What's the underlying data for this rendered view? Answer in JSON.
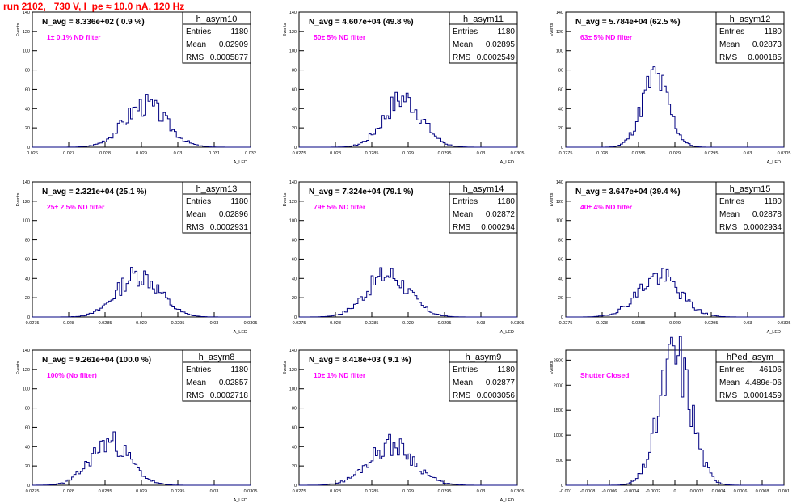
{
  "header": {
    "run_title": "run 2102,   730 V, I_pe ≈ 10.0 nA, 120 Hz"
  },
  "stats_labels": {
    "entries": "Entries",
    "mean": "Mean",
    "rms": "RMS"
  },
  "colors": {
    "title": "#ff0000",
    "filter_text": "#ff00ff",
    "histogram": "#000080",
    "frame": "#000000"
  },
  "chart_data": [
    {
      "type": "bar",
      "name": "h_asym10",
      "navg": "N_avg = 8.336e+02 ( 0.9 %)",
      "filter": "1± 0.1% ND filter",
      "entries": "1180",
      "mean": "0.02909",
      "rms": "0.0005877",
      "ylabel": "Events",
      "xlabel": "A_LED",
      "xlim": [
        0.026,
        0.032
      ],
      "ylim": [
        0,
        140
      ],
      "xticks": [
        "0.026",
        "0.027",
        "0.028",
        "0.029",
        "0.03",
        "0.031",
        "0.032"
      ],
      "yticks": [
        "0",
        "20",
        "40",
        "60",
        "80",
        "100",
        "120",
        "140"
      ],
      "mu": 0.0291,
      "sigma": 0.00058,
      "peak": 44,
      "seed": 3
    },
    {
      "type": "bar",
      "name": "h_asym11",
      "navg": "N_avg = 4.607e+04 (49.8 %)",
      "filter": "50± 5% ND filter",
      "entries": "1180",
      "mean": "0.02895",
      "rms": "0.0002549",
      "ylabel": "Events",
      "xlabel": "A_LED",
      "xlim": [
        0.0275,
        0.0305
      ],
      "ylim": [
        0,
        140
      ],
      "xticks": [
        "0.0275",
        "0.028",
        "0.0285",
        "0.029",
        "0.0295",
        "0.03",
        "0.0305"
      ],
      "yticks": [
        "0",
        "20",
        "40",
        "60",
        "80",
        "100",
        "120",
        "140"
      ],
      "mu": 0.02893,
      "sigma": 0.00026,
      "peak": 50,
      "seed": 7
    },
    {
      "type": "bar",
      "name": "h_asym12",
      "navg": "N_avg = 5.784e+04 (62.5 %)",
      "filter": "63± 5% ND filter",
      "entries": "1180",
      "mean": "0.02873",
      "rms": "0.000185",
      "ylabel": "Events",
      "xlabel": "A_LED",
      "xlim": [
        0.0275,
        0.0305
      ],
      "ylim": [
        0,
        140
      ],
      "xticks": [
        "0.0275",
        "0.028",
        "0.0285",
        "0.029",
        "0.0295",
        "0.03",
        "0.0305"
      ],
      "yticks": [
        "0",
        "20",
        "40",
        "60",
        "80",
        "100",
        "120",
        "140"
      ],
      "mu": 0.02873,
      "sigma": 0.000185,
      "peak": 72,
      "seed": 11
    },
    {
      "type": "bar",
      "name": "h_asym13",
      "navg": "N_avg = 2.321e+04 (25.1 %)",
      "filter": "25± 2.5% ND filter",
      "entries": "1180",
      "mean": "0.02896",
      "rms": "0.0002931",
      "ylabel": "Events",
      "xlabel": "A_LED",
      "xlim": [
        0.0275,
        0.0305
      ],
      "ylim": [
        0,
        140
      ],
      "xticks": [
        "0.0275",
        "0.028",
        "0.0285",
        "0.029",
        "0.0295",
        "0.03",
        "0.0305"
      ],
      "yticks": [
        "0",
        "20",
        "40",
        "60",
        "80",
        "100",
        "120",
        "140"
      ],
      "mu": 0.02896,
      "sigma": 0.00029,
      "peak": 44,
      "seed": 13
    },
    {
      "type": "bar",
      "name": "h_asym14",
      "navg": "N_avg = 7.324e+04 (79.1 %)",
      "filter": "79± 5% ND filter",
      "entries": "1180",
      "mean": "0.02872",
      "rms": "0.000294",
      "ylabel": "Events",
      "xlabel": "A_LED",
      "xlim": [
        0.0275,
        0.0305
      ],
      "ylim": [
        0,
        140
      ],
      "xticks": [
        "0.0275",
        "0.028",
        "0.0285",
        "0.029",
        "0.0295",
        "0.03",
        "0.0305"
      ],
      "yticks": [
        "0",
        "20",
        "40",
        "60",
        "80",
        "100",
        "120",
        "140"
      ],
      "mu": 0.02872,
      "sigma": 0.00029,
      "peak": 44,
      "seed": 17
    },
    {
      "type": "bar",
      "name": "h_asym15",
      "navg": "N_avg = 3.647e+04 (39.4 %)",
      "filter": "40± 4% ND filter",
      "entries": "1180",
      "mean": "0.02878",
      "rms": "0.0002934",
      "ylabel": "Events",
      "xlabel": "A_LED",
      "xlim": [
        0.0275,
        0.0305
      ],
      "ylim": [
        0,
        140
      ],
      "xticks": [
        "0.0275",
        "0.028",
        "0.0285",
        "0.029",
        "0.0295",
        "0.03",
        "0.0305"
      ],
      "yticks": [
        "0",
        "20",
        "40",
        "60",
        "80",
        "100",
        "120",
        "140"
      ],
      "mu": 0.02878,
      "sigma": 0.00029,
      "peak": 42,
      "seed": 19
    },
    {
      "type": "bar",
      "name": "h_asym8",
      "navg": "N_avg = 9.261e+04 (100.0 %)",
      "filter": "100% (No filter)",
      "entries": "1180",
      "mean": "0.02857",
      "rms": "0.0002718",
      "ylabel": "Events",
      "xlabel": "A_LED",
      "xlim": [
        0.0275,
        0.0305
      ],
      "ylim": [
        0,
        140
      ],
      "xticks": [
        "0.0275",
        "0.028",
        "0.0285",
        "0.029",
        "0.0295",
        "0.03",
        "0.0305"
      ],
      "yticks": [
        "0",
        "20",
        "40",
        "60",
        "80",
        "100",
        "120",
        "140"
      ],
      "mu": 0.02857,
      "sigma": 0.00027,
      "peak": 45,
      "seed": 23
    },
    {
      "type": "bar",
      "name": "h_asym9",
      "navg": "N_avg = 8.418e+03 ( 9.1 %)",
      "filter": "10± 1% ND filter",
      "entries": "1180",
      "mean": "0.02877",
      "rms": "0.0003056",
      "ylabel": "Events",
      "xlabel": "A_LED",
      "xlim": [
        0.0275,
        0.0305
      ],
      "ylim": [
        0,
        140
      ],
      "xticks": [
        "0.0275",
        "0.028",
        "0.0285",
        "0.029",
        "0.0295",
        "0.03",
        "0.0305"
      ],
      "yticks": [
        "0",
        "20",
        "40",
        "60",
        "80",
        "100",
        "120",
        "140"
      ],
      "mu": 0.02877,
      "sigma": 0.00031,
      "peak": 42,
      "seed": 29
    },
    {
      "type": "bar",
      "name": "hPed_asym",
      "navg": "",
      "filter": "Shutter Closed",
      "entries": "46106",
      "mean": "4.489e-06",
      "rms": "0.0001459",
      "ylabel": "Events",
      "xlabel": "",
      "xlim": [
        -0.001,
        0.001
      ],
      "ylim": [
        0,
        2700
      ],
      "xticks": [
        "-0.001",
        "-0.0008",
        "-0.0006",
        "-0.0004",
        "-0.0002",
        "0",
        "0.0002",
        "0.0004",
        "0.0006",
        "0.0008",
        "0.001"
      ],
      "yticks": [
        "0",
        "500",
        "1000",
        "1500",
        "2000",
        "2500"
      ],
      "mu": 4.5e-06,
      "sigma": 0.000146,
      "peak": 2560,
      "seed": 31
    }
  ]
}
